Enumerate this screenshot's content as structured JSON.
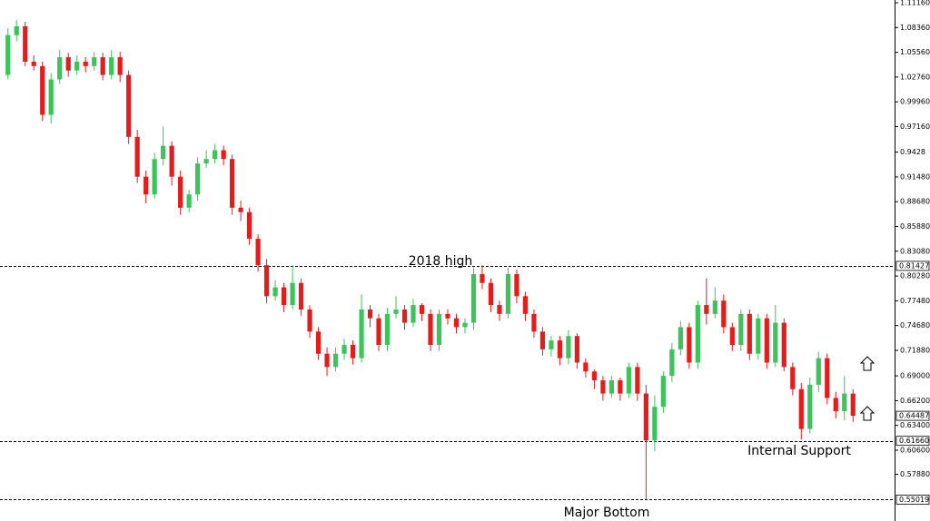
{
  "chart_data": {
    "type": "candlestick",
    "up_color": "#3cc45a",
    "down_color": "#e51c1c",
    "ylim": [
      0.526,
      1.1147
    ],
    "yticks": [
      {
        "value": 1.1116,
        "label": "1.11160"
      },
      {
        "value": 1.0836,
        "label": "1.08360"
      },
      {
        "value": 1.0556,
        "label": "1.05560"
      },
      {
        "value": 1.0276,
        "label": "1.02760"
      },
      {
        "value": 0.9996,
        "label": "0.99960"
      },
      {
        "value": 0.9716,
        "label": "0.97160"
      },
      0.9428,
      {
        "value": 0.9148,
        "label": "0.91480"
      },
      {
        "value": 0.8868,
        "label": "0.88680"
      },
      {
        "value": 0.8588,
        "label": "0.85880"
      },
      {
        "value": 0.8308,
        "label": "0.83080"
      },
      {
        "value": 0.8028,
        "label": "0.80280"
      },
      {
        "value": 0.7748,
        "label": "0.77480"
      },
      {
        "value": 0.7468,
        "label": "0.74680"
      },
      {
        "value": 0.7188,
        "label": "0.71880"
      },
      {
        "value": 0.69,
        "label": "0.69000"
      },
      {
        "value": 0.662,
        "label": "0.66200"
      },
      {
        "value": 0.634,
        "label": "0.63400"
      },
      {
        "value": 0.606,
        "label": "0.60600"
      },
      {
        "value": 0.5788,
        "label": "0.57880"
      }
    ],
    "levels": [
      0.81427,
      {
        "value": 0.6166,
        "label": "0.61660"
      },
      0.55019
    ],
    "last_price": 0.64487,
    "annotations": [
      "2018 high",
      "Internal Support",
      "Major Bottom"
    ],
    "open": [
      1.03,
      1.075,
      1.085,
      1.045,
      1.04,
      0.985,
      1.025,
      1.05,
      1.035,
      1.045,
      1.04,
      1.05,
      1.03,
      1.05,
      1.03,
      0.96,
      0.915,
      0.895,
      0.935,
      0.95,
      0.915,
      0.88,
      0.895,
      0.93,
      0.935,
      0.945,
      0.935,
      0.88,
      0.875,
      0.845,
      0.815,
      0.78,
      0.79,
      0.77,
      0.795,
      0.765,
      0.74,
      0.715,
      0.7,
      0.715,
      0.725,
      0.71,
      0.765,
      0.755,
      0.725,
      0.76,
      0.765,
      0.75,
      0.77,
      0.76,
      0.725,
      0.76,
      0.755,
      0.745,
      0.75,
      0.805,
      0.795,
      0.77,
      0.76,
      0.805,
      0.78,
      0.76,
      0.74,
      0.72,
      0.73,
      0.71,
      0.735,
      0.705,
      0.695,
      0.685,
      0.67,
      0.685,
      0.67,
      0.7,
      0.67,
      0.617,
      0.655,
      0.69,
      0.72,
      0.745,
      0.705,
      0.77,
      0.76,
      0.775,
      0.745,
      0.725,
      0.76,
      0.715,
      0.755,
      0.705,
      0.75,
      0.7,
      0.675,
      0.63,
      0.68,
      0.71,
      0.665,
      0.65,
      0.67
    ],
    "high": [
      1.083,
      1.092,
      1.09,
      1.052,
      1.045,
      1.032,
      1.058,
      1.055,
      1.052,
      1.05,
      1.056,
      1.055,
      1.058,
      1.056,
      1.035,
      0.968,
      0.922,
      0.942,
      0.972,
      0.955,
      0.922,
      0.9,
      0.937,
      0.945,
      0.952,
      0.95,
      0.94,
      0.888,
      0.88,
      0.85,
      0.822,
      0.798,
      0.795,
      0.815,
      0.8,
      0.77,
      0.745,
      0.722,
      0.722,
      0.732,
      0.73,
      0.782,
      0.77,
      0.76,
      0.767,
      0.78,
      0.77,
      0.777,
      0.772,
      0.765,
      0.765,
      0.765,
      0.76,
      0.755,
      0.812,
      0.815,
      0.8,
      0.775,
      0.812,
      0.81,
      0.785,
      0.765,
      0.745,
      0.735,
      0.735,
      0.742,
      0.738,
      0.71,
      0.697,
      0.69,
      0.69,
      0.688,
      0.705,
      0.705,
      0.68,
      0.668,
      0.695,
      0.727,
      0.752,
      0.75,
      0.775,
      0.8,
      0.79,
      0.782,
      0.75,
      0.765,
      0.765,
      0.76,
      0.76,
      0.77,
      0.755,
      0.705,
      0.682,
      0.688,
      0.717,
      0.715,
      0.672,
      0.69,
      0.675
    ],
    "low": [
      1.025,
      1.068,
      1.04,
      1.035,
      0.978,
      0.975,
      1.02,
      1.028,
      1.03,
      1.033,
      1.035,
      1.024,
      1.025,
      1.022,
      0.952,
      0.908,
      0.885,
      0.89,
      0.928,
      0.905,
      0.872,
      0.875,
      0.888,
      0.925,
      0.93,
      0.928,
      0.872,
      0.865,
      0.838,
      0.808,
      0.772,
      0.775,
      0.762,
      0.765,
      0.758,
      0.733,
      0.708,
      0.69,
      0.695,
      0.708,
      0.703,
      0.705,
      0.745,
      0.718,
      0.718,
      0.755,
      0.742,
      0.745,
      0.752,
      0.718,
      0.718,
      0.748,
      0.738,
      0.738,
      0.742,
      0.788,
      0.762,
      0.752,
      0.755,
      0.772,
      0.752,
      0.733,
      0.713,
      0.712,
      0.702,
      0.703,
      0.698,
      0.688,
      0.675,
      0.662,
      0.665,
      0.662,
      0.665,
      0.662,
      0.5502,
      0.605,
      0.648,
      0.683,
      0.713,
      0.698,
      0.698,
      0.748,
      0.755,
      0.738,
      0.718,
      0.718,
      0.708,
      0.708,
      0.698,
      0.7,
      0.695,
      0.668,
      0.618,
      0.625,
      0.672,
      0.658,
      0.642,
      0.64,
      0.638
    ],
    "close": [
      1.075,
      1.085,
      1.045,
      1.04,
      0.985,
      1.025,
      1.05,
      1.035,
      1.045,
      1.04,
      1.05,
      1.03,
      1.05,
      1.03,
      0.96,
      0.915,
      0.895,
      0.935,
      0.95,
      0.915,
      0.88,
      0.895,
      0.93,
      0.935,
      0.945,
      0.935,
      0.88,
      0.875,
      0.845,
      0.815,
      0.78,
      0.79,
      0.77,
      0.795,
      0.765,
      0.74,
      0.715,
      0.7,
      0.715,
      0.725,
      0.71,
      0.765,
      0.755,
      0.725,
      0.76,
      0.765,
      0.75,
      0.77,
      0.76,
      0.725,
      0.76,
      0.755,
      0.745,
      0.75,
      0.805,
      0.795,
      0.77,
      0.76,
      0.805,
      0.78,
      0.76,
      0.74,
      0.72,
      0.73,
      0.71,
      0.735,
      0.705,
      0.695,
      0.685,
      0.67,
      0.685,
      0.67,
      0.7,
      0.67,
      0.617,
      0.655,
      0.69,
      0.72,
      0.745,
      0.705,
      0.77,
      0.76,
      0.775,
      0.745,
      0.725,
      0.76,
      0.715,
      0.755,
      0.705,
      0.75,
      0.7,
      0.675,
      0.63,
      0.68,
      0.71,
      0.665,
      0.65,
      0.67,
      0.6449
    ]
  }
}
